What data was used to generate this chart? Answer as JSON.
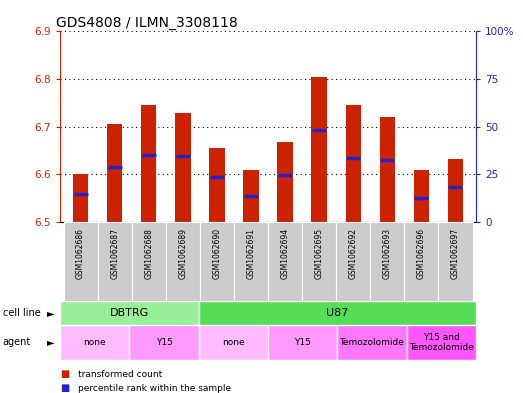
{
  "title": "GDS4808 / ILMN_3308118",
  "samples": [
    "GSM1062686",
    "GSM1062687",
    "GSM1062688",
    "GSM1062689",
    "GSM1062690",
    "GSM1062691",
    "GSM1062694",
    "GSM1062695",
    "GSM1062692",
    "GSM1062693",
    "GSM1062696",
    "GSM1062697"
  ],
  "bar_tops": [
    6.6,
    6.705,
    6.745,
    6.728,
    6.655,
    6.61,
    6.668,
    6.805,
    6.745,
    6.72,
    6.61,
    6.632
  ],
  "bar_bottom": 6.5,
  "blue_marker_values": [
    6.558,
    6.615,
    6.64,
    6.638,
    6.594,
    6.554,
    6.598,
    6.693,
    6.634,
    6.63,
    6.551,
    6.573
  ],
  "ylim_left": [
    6.5,
    6.9
  ],
  "ylim_right": [
    0,
    100
  ],
  "yticks_left": [
    6.5,
    6.6,
    6.7,
    6.8,
    6.9
  ],
  "yticks_right": [
    0,
    25,
    50,
    75,
    100
  ],
  "ytick_labels_right": [
    "0",
    "25",
    "50",
    "75",
    "100%"
  ],
  "bar_color": "#CC2200",
  "blue_color": "#2222CC",
  "cell_line_groups": [
    {
      "label": "DBTRG",
      "start": 0,
      "end": 3,
      "color": "#99EE99"
    },
    {
      "label": "U87",
      "start": 4,
      "end": 11,
      "color": "#55DD55"
    }
  ],
  "agent_groups": [
    {
      "label": "none",
      "start": 0,
      "end": 1,
      "color": "#FFBBFF"
    },
    {
      "label": "Y15",
      "start": 2,
      "end": 3,
      "color": "#FF99FF"
    },
    {
      "label": "none",
      "start": 4,
      "end": 5,
      "color": "#FFBBFF"
    },
    {
      "label": "Y15",
      "start": 6,
      "end": 7,
      "color": "#FF99FF"
    },
    {
      "label": "Temozolomide",
      "start": 8,
      "end": 9,
      "color": "#FF77FF"
    },
    {
      "label": "Y15 and\nTemozolomide",
      "start": 10,
      "end": 11,
      "color": "#FF55FF"
    }
  ],
  "legend_items": [
    {
      "label": "transformed count",
      "color": "#CC2200"
    },
    {
      "label": "percentile rank within the sample",
      "color": "#2222CC"
    }
  ],
  "ylabel_left_color": "#CC2200",
  "ylabel_right_color": "#2222CC",
  "title_fontsize": 10,
  "tick_fontsize": 7.5,
  "bar_width": 0.45,
  "sample_bg_color": "#CCCCCC",
  "fig_bg": "#FFFFFF"
}
